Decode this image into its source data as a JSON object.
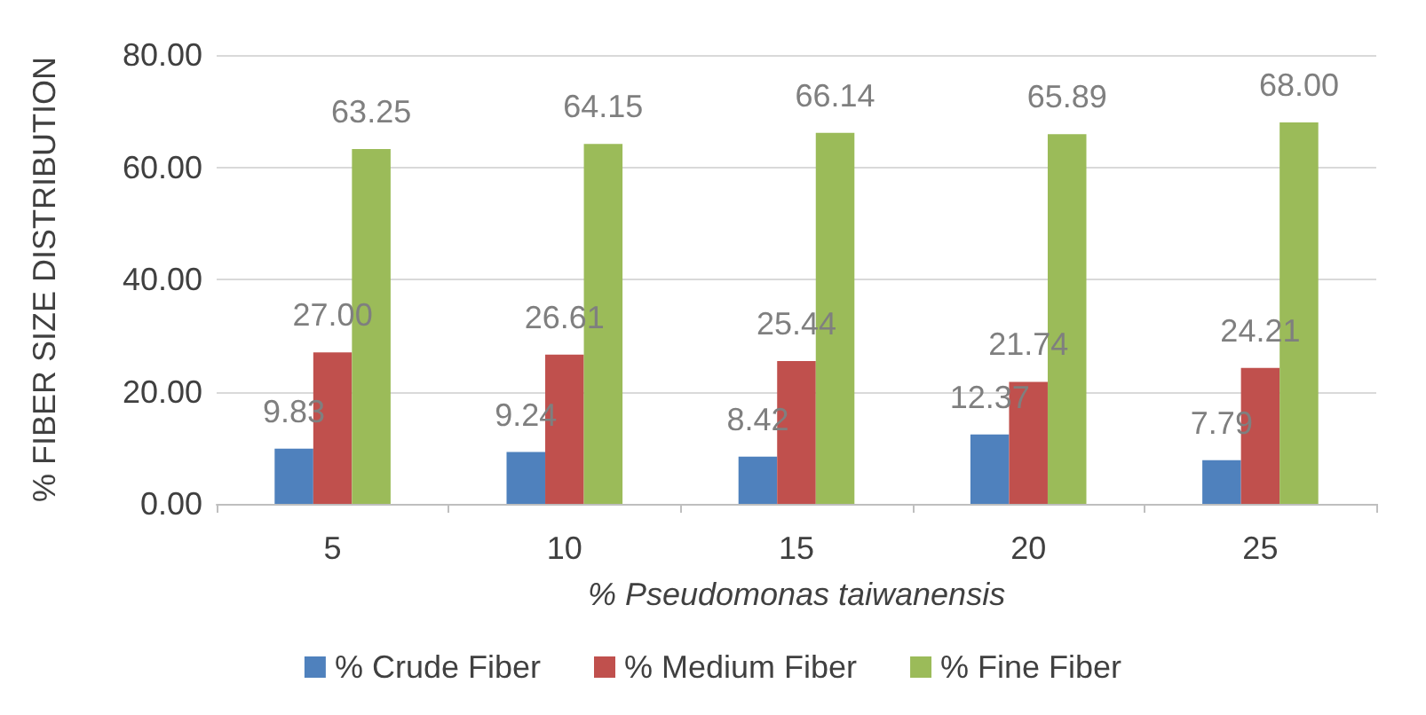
{
  "chart_data": {
    "type": "bar",
    "xlabel": "% Pseudomonas taiwanensis",
    "ylabel": "% FIBER SIZE DISTRIBUTION",
    "categories": [
      "5",
      "10",
      "15",
      "20",
      "25"
    ],
    "series": [
      {
        "name": "% Crude Fiber",
        "color": "#4f81bd",
        "values": [
          9.83,
          9.24,
          8.42,
          12.37,
          7.79
        ],
        "value_labels": [
          "9.83",
          "9.24",
          "8.42",
          "12.37",
          "7.79"
        ]
      },
      {
        "name": "% Medium Fiber",
        "color": "#c0504d",
        "values": [
          27.0,
          26.61,
          25.44,
          21.74,
          24.21
        ],
        "value_labels": [
          "27.00",
          "26.61",
          "25.44",
          "21.74",
          "24.21"
        ]
      },
      {
        "name": "% Fine Fiber",
        "color": "#9bbb59",
        "values": [
          63.25,
          64.15,
          66.14,
          65.89,
          68.0
        ],
        "value_labels": [
          "63.25",
          "64.15",
          "66.14",
          "65.89",
          "68.00"
        ]
      }
    ],
    "ylim": [
      0,
      80
    ],
    "yticks": [
      {
        "value": 0,
        "label": "0.00"
      },
      {
        "value": 20,
        "label": "20.00"
      },
      {
        "value": 40,
        "label": "40.00"
      },
      {
        "value": 60,
        "label": "60.00"
      },
      {
        "value": 80,
        "label": "80.00"
      }
    ],
    "grid": "y",
    "legend": "bottom"
  }
}
